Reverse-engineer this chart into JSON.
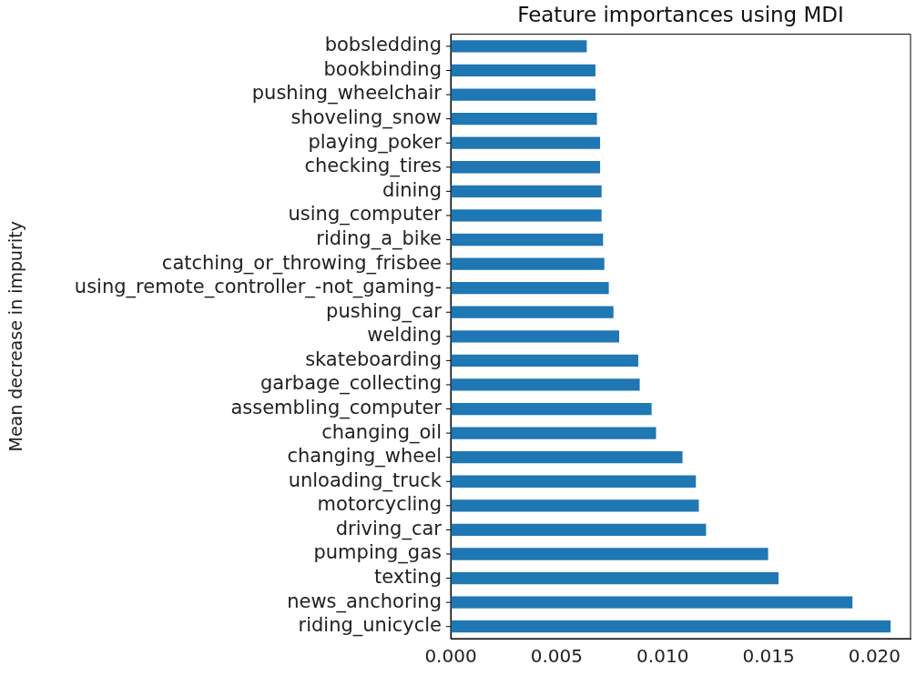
{
  "chart_data": {
    "type": "bar",
    "orientation": "horizontal",
    "title": "Feature importances using MDI",
    "ylabel": "Mean decrease in impurity",
    "categories": [
      "bobsledding",
      "bookbinding",
      "pushing_wheelchair",
      "shoveling_snow",
      "playing_poker",
      "checking_tires",
      "dining",
      "using_computer",
      "riding_a_bike",
      "catching_or_throwing_frisbee",
      "using_remote_controller_-not_gaming-",
      "pushing_car",
      "welding",
      "skateboarding",
      "garbage_collecting",
      "assembling_computer",
      "changing_oil",
      "changing_wheel",
      "unloading_truck",
      "motorcycling",
      "driving_car",
      "pumping_gas",
      "texting",
      "news_anchoring",
      "riding_unicycle"
    ],
    "values": [
      0.00642,
      0.00683,
      0.00683,
      0.0069,
      0.00705,
      0.00705,
      0.00712,
      0.00712,
      0.00719,
      0.00725,
      0.00746,
      0.00768,
      0.00795,
      0.00885,
      0.00892,
      0.00948,
      0.00969,
      0.01094,
      0.01157,
      0.01171,
      0.01205,
      0.01498,
      0.01547,
      0.01896,
      0.02076
    ],
    "color": "#1f77b4",
    "xlim": [
      0,
      0.0217
    ],
    "xticks": [
      {
        "value": 0,
        "label": "0.000"
      },
      {
        "value": 0.005,
        "label": "0.005"
      },
      {
        "value": 0.01,
        "label": "0.010"
      },
      {
        "value": 0.015,
        "label": "0.015"
      },
      {
        "value": 0.02,
        "label": "0.020"
      }
    ],
    "grid": false,
    "legend": false
  }
}
